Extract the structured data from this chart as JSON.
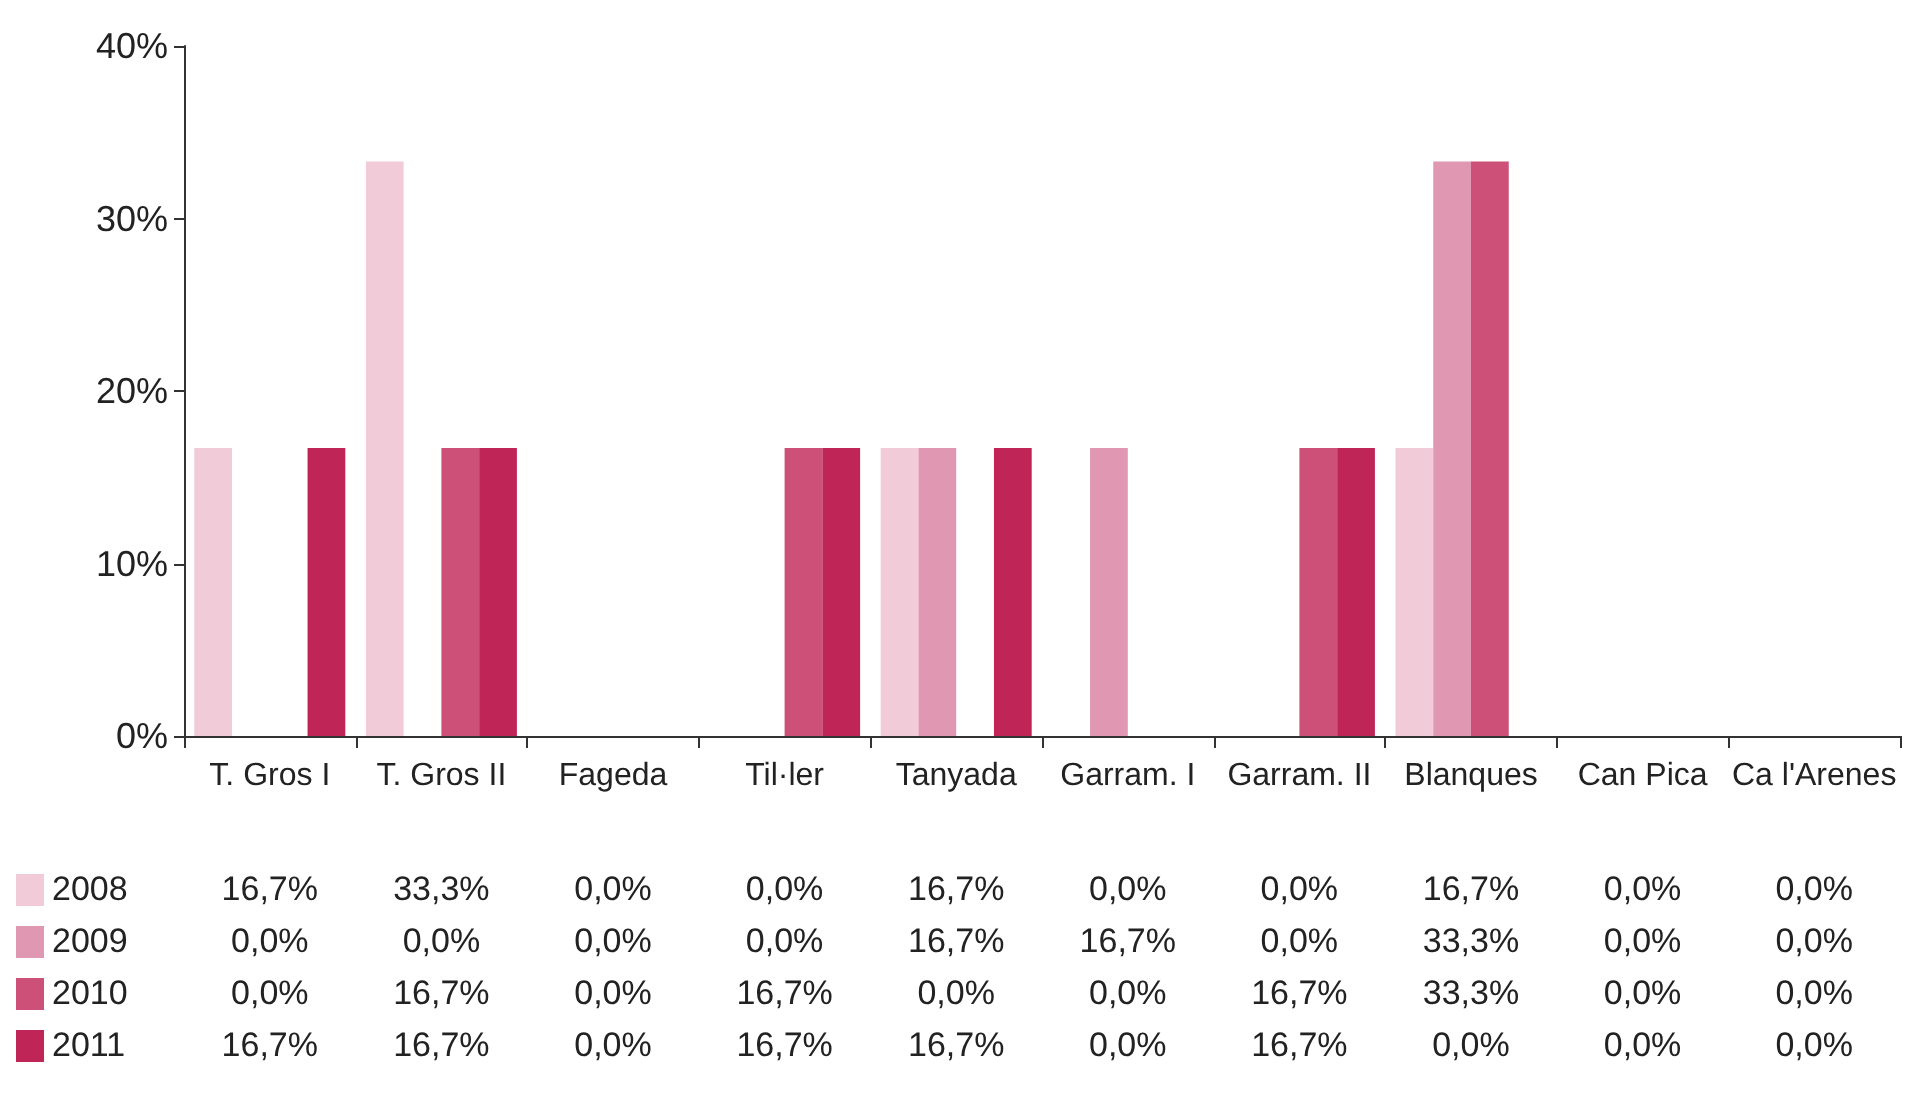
{
  "chart_data": {
    "type": "bar",
    "categories": [
      "T. Gros I",
      "T. Gros II",
      "Fageda",
      "Til·ler",
      "Tanyada",
      "Garram. I",
      "Garram. II",
      "Blanques",
      "Can Pica",
      "Ca l'Arenes"
    ],
    "series": [
      {
        "name": "2008",
        "color": "#f2cbd8",
        "values": [
          16.7,
          33.3,
          0,
          0,
          16.7,
          0,
          0,
          16.7,
          0,
          0
        ],
        "value_labels": [
          "16,7%",
          "33,3%",
          "0,0%",
          "0,0%",
          "16,7%",
          "0,0%",
          "0,0%",
          "16,7%",
          "0,0%",
          "0,0%"
        ]
      },
      {
        "name": "2009",
        "color": "#e097b1",
        "values": [
          0,
          0,
          0,
          0,
          16.7,
          16.7,
          0,
          33.3,
          0,
          0
        ],
        "value_labels": [
          "0,0%",
          "0,0%",
          "0,0%",
          "0,0%",
          "16,7%",
          "16,7%",
          "0,0%",
          "33,3%",
          "0,0%",
          "0,0%"
        ]
      },
      {
        "name": "2010",
        "color": "#cc5078",
        "values": [
          0,
          16.7,
          0,
          16.7,
          0,
          0,
          16.7,
          33.3,
          0,
          0
        ],
        "value_labels": [
          "0,0%",
          "16,7%",
          "0,0%",
          "16,7%",
          "0,0%",
          "0,0%",
          "16,7%",
          "33,3%",
          "0,0%",
          "0,0%"
        ]
      },
      {
        "name": "2011",
        "color": "#c02557",
        "values": [
          16.7,
          16.7,
          0,
          16.7,
          16.7,
          0,
          16.7,
          0,
          0,
          0
        ],
        "value_labels": [
          "16,7%",
          "16,7%",
          "0,0%",
          "16,7%",
          "16,7%",
          "0,0%",
          "16,7%",
          "0,0%",
          "0,0%",
          "0,0%"
        ]
      }
    ],
    "ylim": [
      0,
      40
    ],
    "yticks": [
      {
        "value": 0,
        "label": "0%"
      },
      {
        "value": 10,
        "label": "10%"
      },
      {
        "value": 20,
        "label": "20%"
      },
      {
        "value": 30,
        "label": "30%"
      },
      {
        "value": 40,
        "label": "40%"
      }
    ],
    "grid": false,
    "legend": "bottom"
  }
}
